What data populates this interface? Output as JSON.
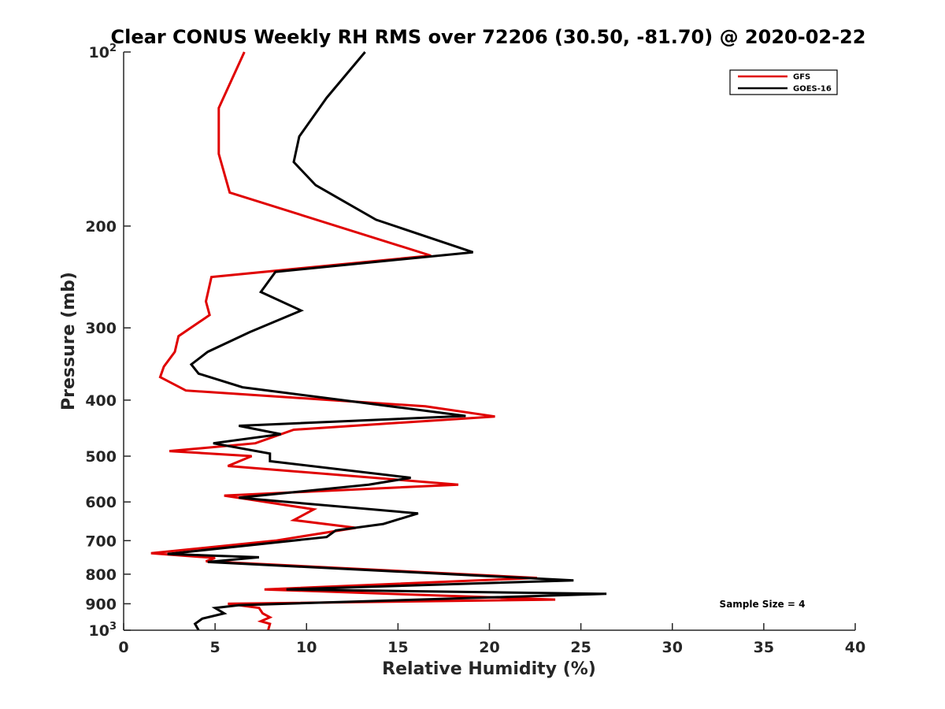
{
  "chart_data": {
    "type": "line",
    "title": "Clear CONUS Weekly RH RMS over 72206 (30.50, -81.70) @ 2020-02-22",
    "xlabel": "Relative Humidity (%)",
    "ylabel": "Pressure (mb)",
    "xlim": [
      0,
      40
    ],
    "ylim": [
      100,
      1000
    ],
    "y_scale": "log",
    "y_reversed": true,
    "grid": false,
    "legend_position": "top-right",
    "x_ticks": [
      "0",
      "5",
      "10",
      "15",
      "20",
      "25",
      "30",
      "35",
      "40"
    ],
    "y_ticks": [
      {
        "value": 100,
        "base": "10",
        "exp": "2"
      },
      {
        "value": 200,
        "label": "200"
      },
      {
        "value": 300,
        "label": "300"
      },
      {
        "value": 400,
        "label": "400"
      },
      {
        "value": 500,
        "label": "500"
      },
      {
        "value": 600,
        "label": "600"
      },
      {
        "value": 700,
        "label": "700"
      },
      {
        "value": 800,
        "label": "800"
      },
      {
        "value": 900,
        "label": "900"
      },
      {
        "value": 1000,
        "base": "10",
        "exp": "3"
      }
    ],
    "annotation": "Sample Size = 4",
    "series": [
      {
        "name": "GFS",
        "color": "#e00000",
        "points": [
          [
            6.6,
            100
          ],
          [
            5.2,
            125
          ],
          [
            5.2,
            150
          ],
          [
            5.8,
            175
          ],
          [
            16.8,
            225
          ],
          [
            4.8,
            245
          ],
          [
            4.5,
            270
          ],
          [
            4.7,
            285
          ],
          [
            3.0,
            310
          ],
          [
            2.8,
            330
          ],
          [
            2.2,
            350
          ],
          [
            2.0,
            365
          ],
          [
            3.4,
            385
          ],
          [
            16.5,
            410
          ],
          [
            20.3,
            427
          ],
          [
            9.3,
            450
          ],
          [
            7.2,
            475
          ],
          [
            2.5,
            490
          ],
          [
            7.0,
            500
          ],
          [
            5.7,
            520
          ],
          [
            18.3,
            560
          ],
          [
            5.5,
            585
          ],
          [
            10.4,
            618
          ],
          [
            9.3,
            645
          ],
          [
            12.7,
            665
          ],
          [
            8.3,
            700
          ],
          [
            1.5,
            736
          ],
          [
            5.0,
            750
          ],
          [
            4.5,
            760
          ],
          [
            22.6,
            812
          ],
          [
            7.7,
            850
          ],
          [
            23.6,
            885
          ],
          [
            5.7,
            900
          ],
          [
            7.4,
            915
          ],
          [
            7.6,
            935
          ],
          [
            8.0,
            950
          ],
          [
            7.5,
            965
          ],
          [
            8.0,
            975
          ],
          [
            7.9,
            1000
          ]
        ]
      },
      {
        "name": "GOES-16",
        "color": "#000000",
        "points": [
          [
            13.2,
            100
          ],
          [
            11.1,
            120
          ],
          [
            9.6,
            140
          ],
          [
            9.3,
            155
          ],
          [
            10.5,
            170
          ],
          [
            13.8,
            195
          ],
          [
            19.1,
            222
          ],
          [
            8.3,
            240
          ],
          [
            7.5,
            260
          ],
          [
            9.7,
            280
          ],
          [
            6.9,
            305
          ],
          [
            4.6,
            330
          ],
          [
            3.7,
            347
          ],
          [
            4.1,
            360
          ],
          [
            6.5,
            380
          ],
          [
            18.7,
            426
          ],
          [
            6.3,
            443
          ],
          [
            8.6,
            458
          ],
          [
            4.9,
            475
          ],
          [
            8.0,
            495
          ],
          [
            8.0,
            510
          ],
          [
            15.7,
            545
          ],
          [
            13.4,
            560
          ],
          [
            6.3,
            590
          ],
          [
            16.1,
            628
          ],
          [
            14.2,
            655
          ],
          [
            11.6,
            672
          ],
          [
            11.1,
            690
          ],
          [
            2.4,
            738
          ],
          [
            7.4,
            748
          ],
          [
            4.6,
            762
          ],
          [
            24.6,
            820
          ],
          [
            8.9,
            850
          ],
          [
            26.4,
            865
          ],
          [
            6.3,
            905
          ],
          [
            5.0,
            915
          ],
          [
            5.5,
            935
          ],
          [
            4.3,
            955
          ],
          [
            3.9,
            975
          ],
          [
            4.1,
            1000
          ]
        ]
      }
    ]
  }
}
